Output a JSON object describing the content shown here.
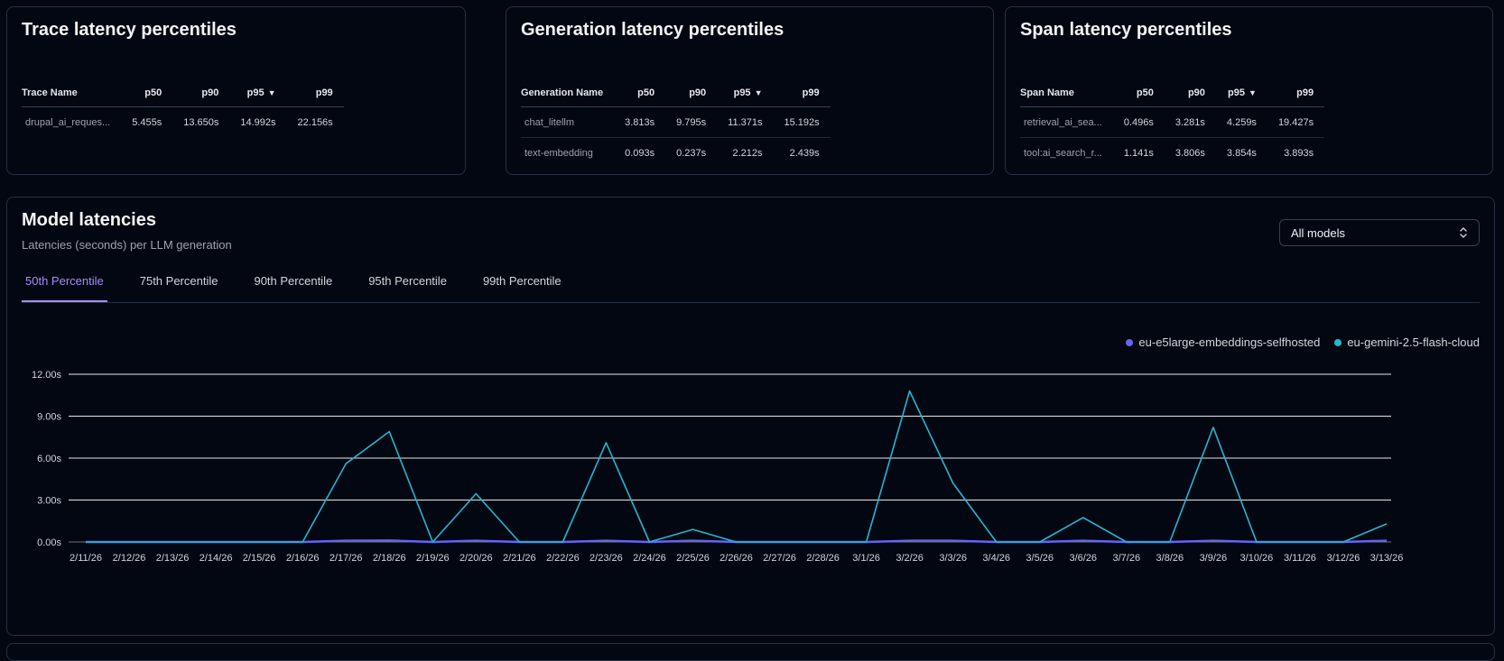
{
  "trace_card": {
    "title": "Trace latency percentiles",
    "headers": [
      "Trace Name",
      "p50",
      "p90",
      "p95",
      "p99"
    ],
    "sort_indicator": "▼",
    "rows": [
      {
        "name": "drupal_ai_reques...",
        "p50": "5.455s",
        "p90": "13.650s",
        "p95": "14.992s",
        "p99": "22.156s"
      }
    ]
  },
  "generation_card": {
    "title": "Generation latency percentiles",
    "headers": [
      "Generation Name",
      "p50",
      "p90",
      "p95",
      "p99"
    ],
    "sort_indicator": "▼",
    "rows": [
      {
        "name": "chat_litellm",
        "p50": "3.813s",
        "p90": "9.795s",
        "p95": "11.371s",
        "p99": "15.192s"
      },
      {
        "name": "text-embedding",
        "p50": "0.093s",
        "p90": "0.237s",
        "p95": "2.212s",
        "p99": "2.439s"
      }
    ]
  },
  "span_card": {
    "title": "Span latency percentiles",
    "headers": [
      "Span Name",
      "p50",
      "p90",
      "p95",
      "p99"
    ],
    "sort_indicator": "▼",
    "rows": [
      {
        "name": "retrieval_ai_sea...",
        "p50": "0.496s",
        "p90": "3.281s",
        "p95": "4.259s",
        "p99": "19.427s"
      },
      {
        "name": "tool:ai_search_r...",
        "p50": "1.141s",
        "p90": "3.806s",
        "p95": "3.854s",
        "p99": "3.893s"
      }
    ]
  },
  "model_card": {
    "title": "Model latencies",
    "subtitle": "Latencies (seconds) per LLM generation",
    "select_value": "All models",
    "select_icon": "chevron-up-down-icon",
    "tabs": [
      "50th Percentile",
      "75th Percentile",
      "90th Percentile",
      "95th Percentile",
      "99th Percentile"
    ],
    "active_tab": 0
  },
  "colors": {
    "accent": "#a78bfa",
    "series_embeddings": "#6366f1",
    "series_gemini": "#22b8cf",
    "grid": "#e5e7eb"
  },
  "chart_data": {
    "type": "line",
    "x": [
      "2/11/26",
      "2/12/26",
      "2/13/26",
      "2/14/26",
      "2/15/26",
      "2/16/26",
      "2/17/26",
      "2/18/26",
      "2/19/26",
      "2/20/26",
      "2/21/26",
      "2/22/26",
      "2/23/26",
      "2/24/26",
      "2/25/26",
      "2/26/26",
      "2/27/26",
      "2/28/26",
      "3/1/26",
      "3/2/26",
      "3/3/26",
      "3/4/26",
      "3/5/26",
      "3/6/26",
      "3/7/26",
      "3/8/26",
      "3/9/26",
      "3/10/26",
      "3/11/26",
      "3/12/26",
      "3/13/26"
    ],
    "yticks": [
      "12.00s",
      "9.00s",
      "6.00s",
      "3.00s",
      "0.00s"
    ],
    "ylim": [
      0,
      12
    ],
    "grid": true,
    "legend_position": "top-right",
    "series": [
      {
        "name": "eu-e5large-embeddings-selfhosted",
        "color": "#6366f1",
        "values": [
          0,
          0,
          0,
          0,
          0,
          0,
          0.09,
          0.1,
          0,
          0.09,
          0,
          0,
          0.09,
          0,
          0.09,
          0,
          0,
          0,
          0,
          0.09,
          0.09,
          0,
          0,
          0.09,
          0,
          0,
          0.09,
          0,
          0,
          0,
          0.09
        ]
      },
      {
        "name": "eu-gemini-2.5-flash-cloud",
        "color": "#22b8cf",
        "values": [
          0,
          0,
          0,
          0,
          0,
          0,
          5.6,
          7.9,
          0,
          3.45,
          0,
          0,
          7.1,
          0,
          0.9,
          0,
          0,
          0,
          0,
          10.8,
          4.2,
          0,
          0,
          1.75,
          0,
          0,
          8.2,
          0,
          0,
          0,
          1.3
        ]
      }
    ]
  }
}
